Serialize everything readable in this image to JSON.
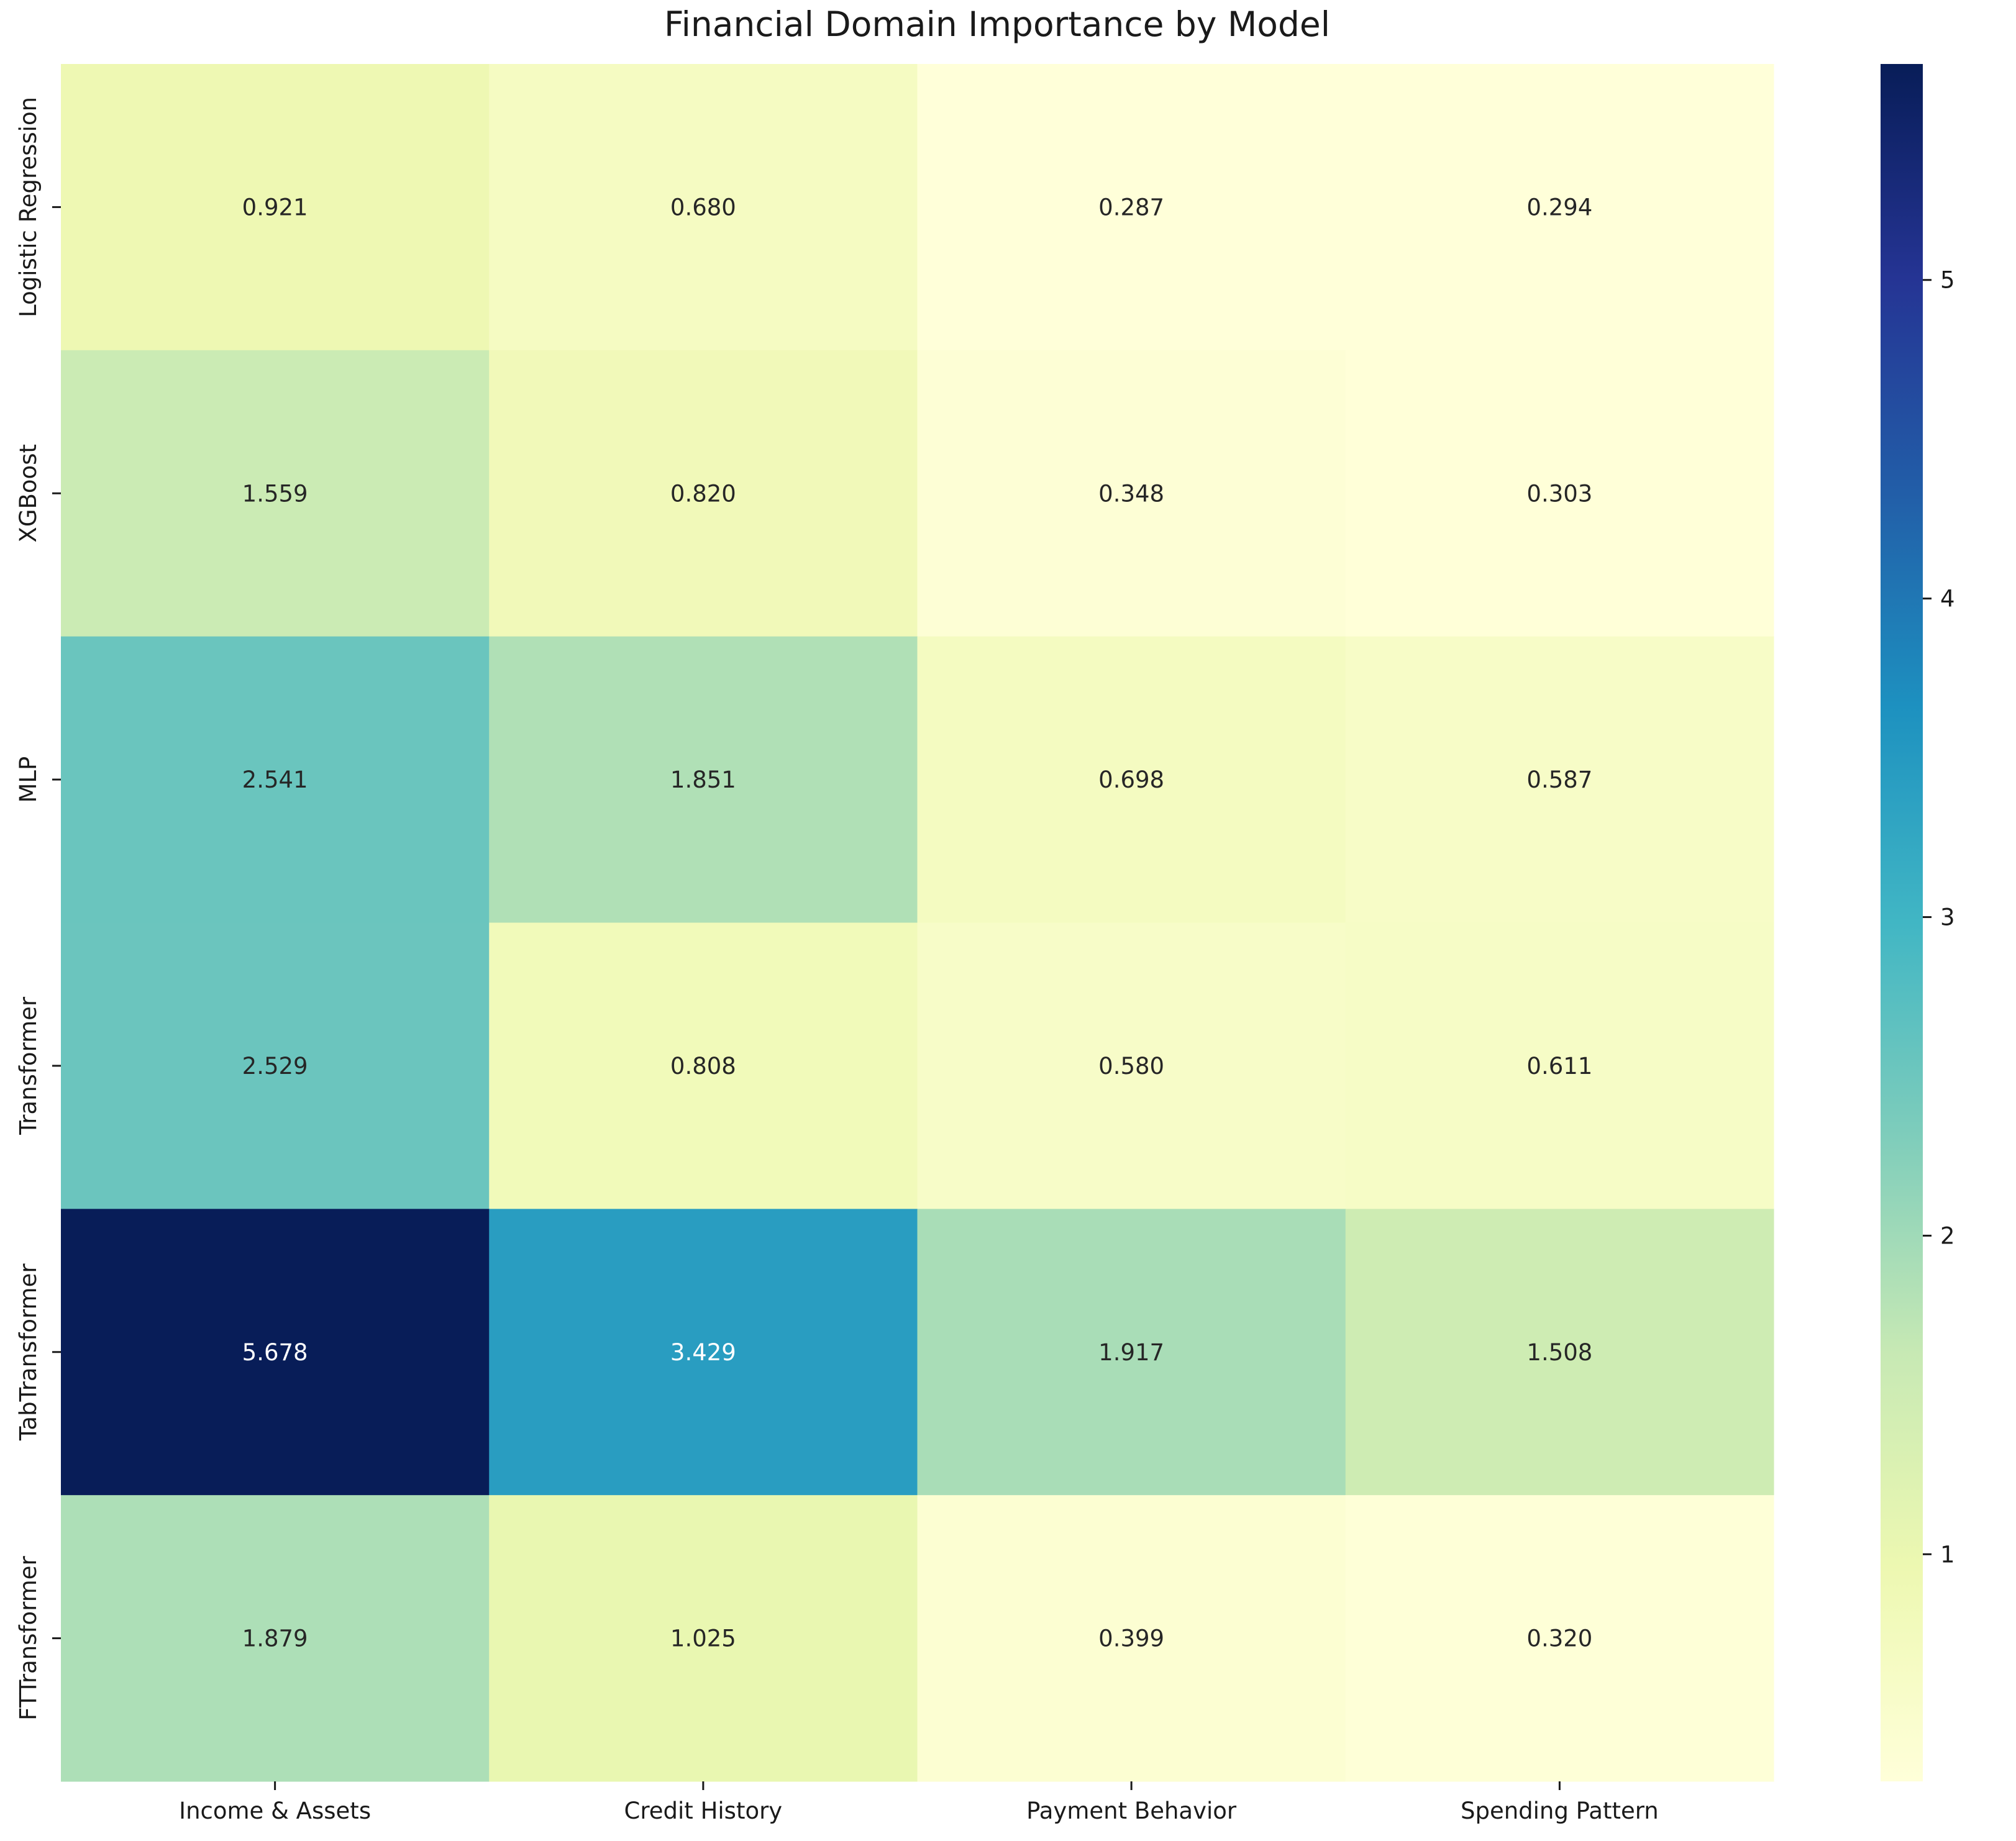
{
  "chart_data": {
    "type": "heatmap",
    "title": "Financial Domain Importance by Model",
    "columns": [
      "Income & Assets",
      "Credit History",
      "Payment Behavior",
      "Spending Pattern"
    ],
    "rows": [
      "Logistic Regression",
      "XGBoost",
      "MLP",
      "Transformer",
      "TabTransformer",
      "FTTransformer"
    ],
    "values": [
      [
        0.921,
        0.68,
        0.287,
        0.294
      ],
      [
        1.559,
        0.82,
        0.348,
        0.303
      ],
      [
        2.541,
        1.851,
        0.698,
        0.587
      ],
      [
        2.529,
        0.808,
        0.58,
        0.611
      ],
      [
        5.678,
        3.429,
        1.917,
        1.508
      ],
      [
        1.879,
        1.025,
        0.399,
        0.32
      ]
    ],
    "value_format": "0.000",
    "colormap": "YlGnBu",
    "colorbar": {
      "vmin": 0.287,
      "vmax": 5.678,
      "ticks": [
        "1",
        "2",
        "3",
        "4",
        "5"
      ],
      "tick_values": [
        1,
        2,
        3,
        4,
        5
      ]
    },
    "annotation_colors": {
      "light_bg": "#262626",
      "dark_bg": "#ffffff"
    }
  }
}
